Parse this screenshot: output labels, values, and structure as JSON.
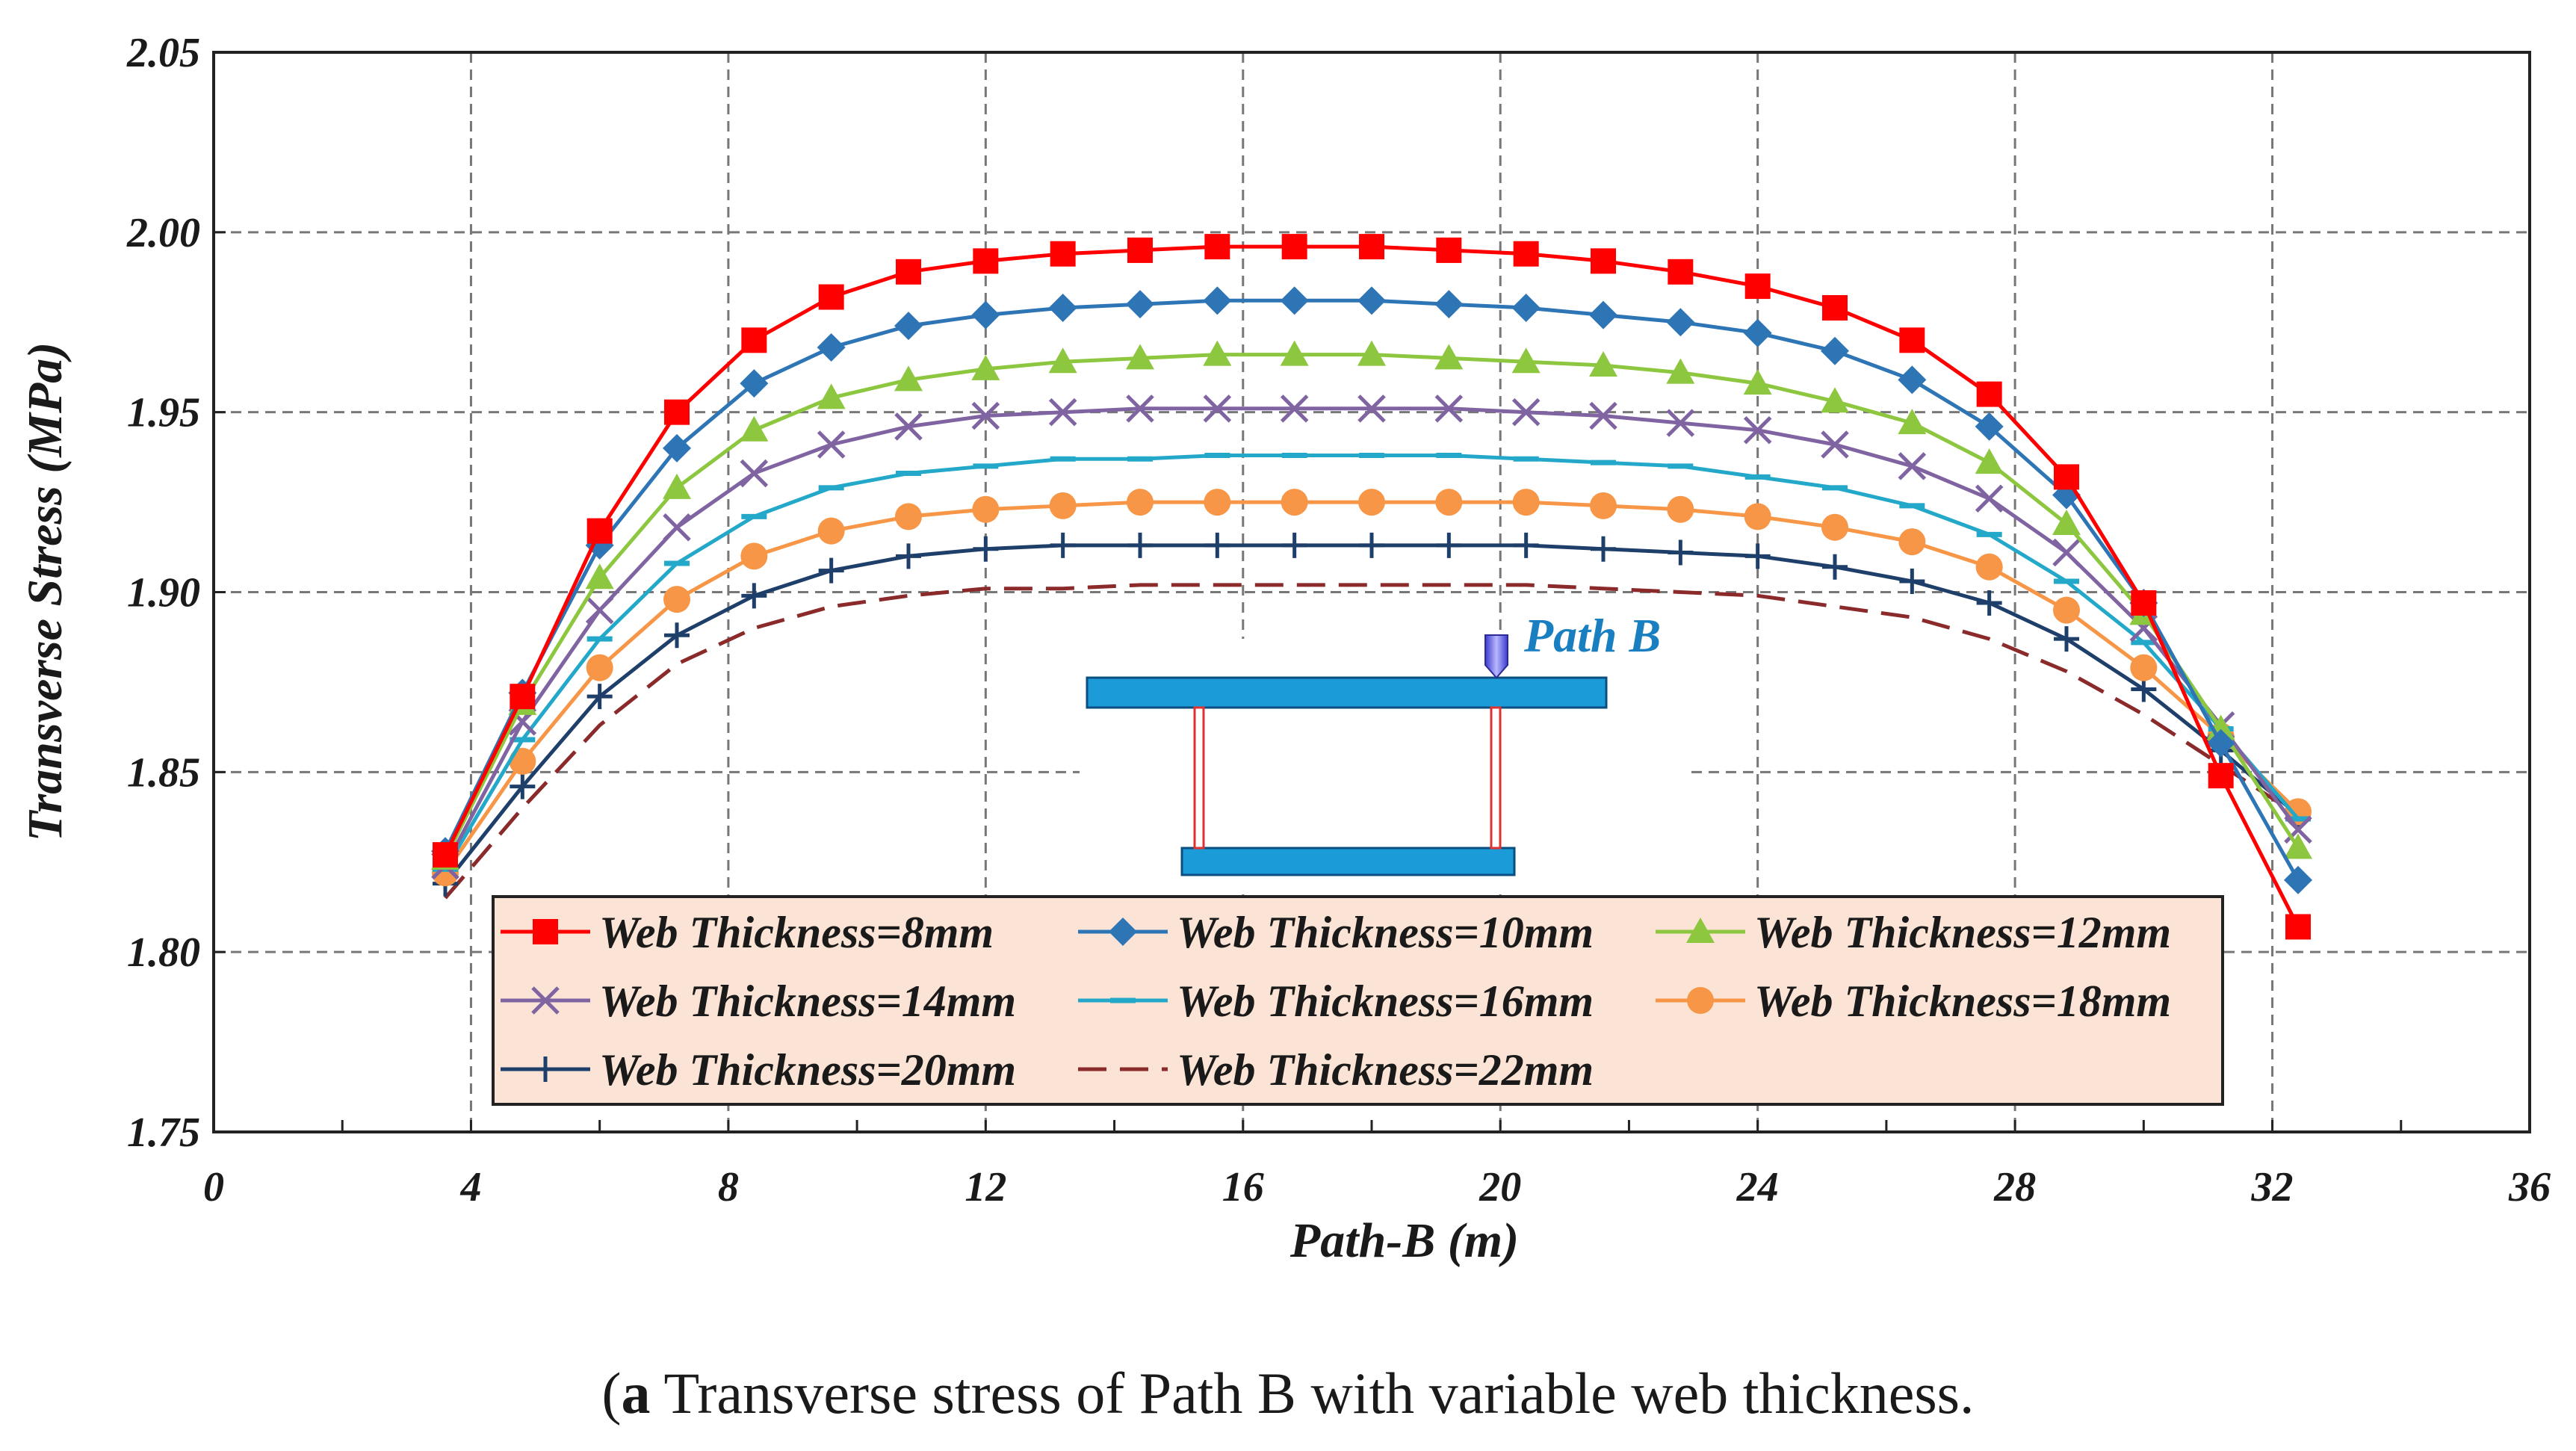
{
  "chart_data": {
    "type": "line",
    "title": "",
    "xlabel": "Path-B (m)",
    "ylabel": "Transverse Stress (MPa)",
    "xlim": [
      0,
      36
    ],
    "ylim": [
      1.75,
      2.05
    ],
    "xticks": [
      "0",
      "4",
      "8",
      "12",
      "16",
      "20",
      "24",
      "28",
      "32",
      "36"
    ],
    "yticks": [
      "1.75",
      "1.80",
      "1.85",
      "1.90",
      "1.95",
      "2.00",
      "2.05"
    ],
    "grid": true,
    "legend_position": "bottom-center",
    "inset_label": "Path B",
    "x": [
      3.6,
      4.8,
      6.0,
      7.2,
      8.4,
      9.6,
      10.8,
      12.0,
      13.2,
      14.4,
      15.6,
      16.8,
      18.0,
      19.2,
      20.4,
      21.6,
      22.8,
      24.0,
      25.2,
      26.4,
      27.6,
      28.8,
      30.0,
      31.2,
      32.4
    ],
    "series": [
      {
        "name": "Web Thickness=8mm",
        "color": "#ff0000",
        "marker": "square",
        "dashed": false,
        "values": [
          1.827,
          1.871,
          1.917,
          1.95,
          1.97,
          1.982,
          1.989,
          1.992,
          1.994,
          1.995,
          1.996,
          1.996,
          1.996,
          1.995,
          1.994,
          1.992,
          1.989,
          1.985,
          1.979,
          1.97,
          1.955,
          1.932,
          1.897,
          1.849,
          1.807
        ]
      },
      {
        "name": "Web Thickness=10mm",
        "color": "#2e75b6",
        "marker": "diamond",
        "dashed": false,
        "values": [
          1.828,
          1.872,
          1.913,
          1.94,
          1.958,
          1.968,
          1.974,
          1.977,
          1.979,
          1.98,
          1.981,
          1.981,
          1.981,
          1.98,
          1.979,
          1.977,
          1.975,
          1.972,
          1.967,
          1.959,
          1.946,
          1.927,
          1.897,
          1.858,
          1.82
        ]
      },
      {
        "name": "Web Thickness=12mm",
        "color": "#8dc63f",
        "marker": "triangle",
        "dashed": false,
        "values": [
          1.826,
          1.869,
          1.904,
          1.929,
          1.945,
          1.954,
          1.959,
          1.962,
          1.964,
          1.965,
          1.966,
          1.966,
          1.966,
          1.965,
          1.964,
          1.963,
          1.961,
          1.958,
          1.953,
          1.947,
          1.936,
          1.919,
          1.894,
          1.862,
          1.829
        ]
      },
      {
        "name": "Web Thickness=14mm",
        "color": "#8064a2",
        "marker": "x",
        "dashed": false,
        "values": [
          1.824,
          1.864,
          1.895,
          1.918,
          1.933,
          1.941,
          1.946,
          1.949,
          1.95,
          1.951,
          1.951,
          1.951,
          1.951,
          1.951,
          1.95,
          1.949,
          1.947,
          1.945,
          1.941,
          1.935,
          1.926,
          1.911,
          1.89,
          1.863,
          1.834
        ]
      },
      {
        "name": "Web Thickness=16mm",
        "color": "#23a8c9",
        "marker": "dash",
        "dashed": false,
        "values": [
          1.823,
          1.859,
          1.887,
          1.908,
          1.921,
          1.929,
          1.933,
          1.935,
          1.937,
          1.937,
          1.938,
          1.938,
          1.938,
          1.938,
          1.937,
          1.936,
          1.935,
          1.932,
          1.929,
          1.924,
          1.916,
          1.903,
          1.886,
          1.862,
          1.837
        ]
      },
      {
        "name": "Web Thickness=18mm",
        "color": "#f79646",
        "marker": "circle",
        "dashed": false,
        "values": [
          1.822,
          1.853,
          1.879,
          1.898,
          1.91,
          1.917,
          1.921,
          1.923,
          1.924,
          1.925,
          1.925,
          1.925,
          1.925,
          1.925,
          1.925,
          1.924,
          1.923,
          1.921,
          1.918,
          1.914,
          1.907,
          1.895,
          1.879,
          1.86,
          1.839
        ]
      },
      {
        "name": "Web Thickness=20mm",
        "color": "#1f3f6b",
        "marker": "plus",
        "dashed": false,
        "values": [
          1.819,
          1.846,
          1.871,
          1.888,
          1.899,
          1.906,
          1.91,
          1.912,
          1.913,
          1.913,
          1.913,
          1.913,
          1.913,
          1.913,
          1.913,
          1.912,
          1.911,
          1.91,
          1.907,
          1.903,
          1.897,
          1.887,
          1.873,
          1.856,
          1.838
        ]
      },
      {
        "name": "Web Thickness=22mm",
        "color": "#8b2a2a",
        "marker": "none",
        "dashed": true,
        "values": [
          1.815,
          1.84,
          1.863,
          1.88,
          1.89,
          1.896,
          1.899,
          1.901,
          1.901,
          1.902,
          1.902,
          1.902,
          1.902,
          1.902,
          1.902,
          1.901,
          1.9,
          1.899,
          1.896,
          1.893,
          1.887,
          1.878,
          1.866,
          1.852,
          1.838
        ]
      }
    ]
  },
  "caption": {
    "tag": "a",
    "text": " Transverse stress of Path B with variable web thickness."
  }
}
